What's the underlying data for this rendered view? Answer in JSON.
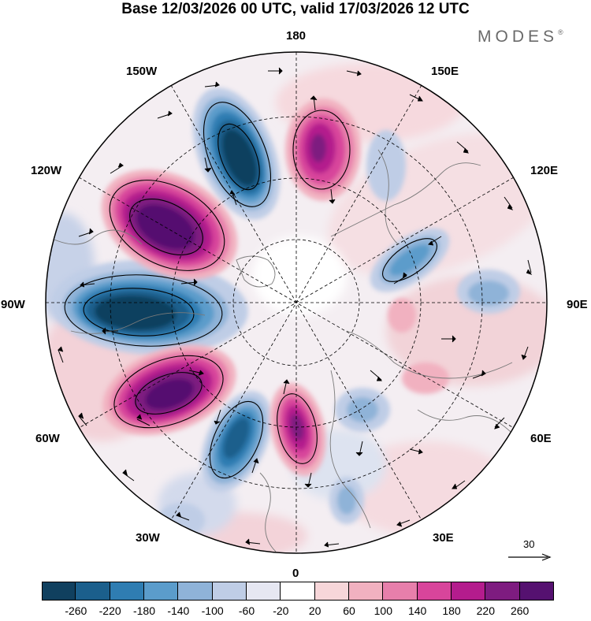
{
  "header": {
    "title": "Base 12/03/2026 00 UTC, valid 17/03/2026 12 UTC",
    "brand": "MODES",
    "brand_mark": "®"
  },
  "map": {
    "projection": "polar stereographic",
    "longitude_labels": [
      {
        "name": "lbl-180",
        "text": "180"
      },
      {
        "name": "lbl-150e",
        "text": "150E"
      },
      {
        "name": "lbl-120e",
        "text": "120E"
      },
      {
        "name": "lbl-90e",
        "text": "90E"
      },
      {
        "name": "lbl-60e",
        "text": "60E"
      },
      {
        "name": "lbl-30e",
        "text": "30E"
      },
      {
        "name": "lbl-0",
        "text": "0"
      },
      {
        "name": "lbl-30w",
        "text": "30W"
      },
      {
        "name": "lbl-60w",
        "text": "60W"
      },
      {
        "name": "lbl-90w",
        "text": "90W"
      },
      {
        "name": "lbl-120w",
        "text": "120W"
      },
      {
        "name": "lbl-150w",
        "text": "150W"
      }
    ],
    "reference_vector_label": "30"
  },
  "legend": {
    "colors": [
      "#10405f",
      "#1b5f8c",
      "#2f7db2",
      "#5b9ccb",
      "#8fb3d8",
      "#bfcde6",
      "#e6e7f2",
      "#ffffff",
      "#f7d6d9",
      "#f1b1c0",
      "#e77fab",
      "#d8459b",
      "#b41c8d",
      "#7e1c80",
      "#551170"
    ],
    "ticks": [
      "-260",
      "-220",
      "-180",
      "-140",
      "-100",
      "-60",
      "-20",
      "20",
      "60",
      "100",
      "140",
      "180",
      "220",
      "260"
    ]
  }
}
